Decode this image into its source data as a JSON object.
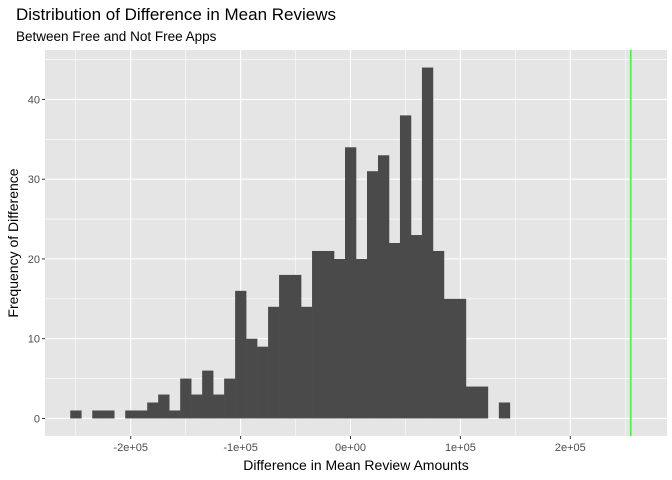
{
  "chart_data": {
    "type": "bar",
    "title": "Distribution of Difference in Mean Reviews",
    "subtitle": "Between Free and Not Free Apps",
    "xlabel": "Difference in Mean Review Amounts",
    "ylabel": "Frequency of Difference",
    "xlim": [
      -278000,
      288000
    ],
    "ylim": [
      -2.2,
      46.2
    ],
    "x_ticks": [
      {
        "value": -200000,
        "label": "-2e+05"
      },
      {
        "value": -100000,
        "label": "-1e+05"
      },
      {
        "value": 0,
        "label": "0e+00"
      },
      {
        "value": 100000,
        "label": "1e+05"
      },
      {
        "value": 200000,
        "label": "2e+05"
      }
    ],
    "y_ticks": [
      {
        "value": 0,
        "label": "0"
      },
      {
        "value": 10,
        "label": "10"
      },
      {
        "value": 20,
        "label": "20"
      },
      {
        "value": 30,
        "label": "30"
      },
      {
        "value": 40,
        "label": "40"
      }
    ],
    "bin_width": 10000,
    "bin_centers": [
      -250000,
      -240000,
      -230000,
      -220000,
      -210000,
      -200000,
      -190000,
      -180000,
      -170000,
      -160000,
      -150000,
      -140000,
      -130000,
      -120000,
      -110000,
      -100000,
      -90000,
      -80000,
      -70000,
      -60000,
      -50000,
      -40000,
      -30000,
      -20000,
      -10000,
      0,
      10000,
      20000,
      30000,
      40000,
      50000,
      60000,
      70000,
      80000,
      90000,
      100000,
      110000,
      120000,
      130000,
      140000
    ],
    "values": [
      1,
      0,
      1,
      1,
      0,
      1,
      1,
      2,
      3,
      1,
      5,
      3,
      6,
      3,
      5,
      16,
      10,
      9,
      14,
      18,
      18,
      14,
      21,
      21,
      20,
      34,
      20,
      31,
      33,
      22,
      38,
      23,
      44,
      21,
      15,
      15,
      4,
      4,
      0,
      2
    ],
    "reference_line": {
      "x": 255000,
      "color": "#33ff33"
    },
    "bar_color": "#4a4a4a",
    "panel_color": "#e5e5e5",
    "grid": true,
    "grid_color": "#ffffff"
  }
}
